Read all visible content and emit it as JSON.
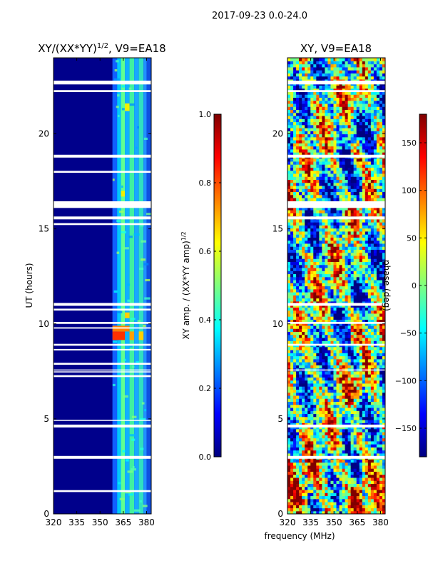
{
  "figure_title": "2017-09-23 0.0-24.0",
  "shared_xlabel": "frequency (MHz)",
  "chart_data": [
    {
      "type": "heatmap",
      "title": "XY/(XX*YY)",
      "title_sup": "1/2",
      "title_suffix": ", V9=EA18",
      "xlim": [
        320,
        383
      ],
      "ylim": [
        0,
        24
      ],
      "xticks": [
        320,
        335,
        350,
        365,
        380
      ],
      "xtick_labels": [
        "320",
        "335",
        "350",
        "365",
        "380"
      ],
      "yticks": [
        0,
        5,
        10,
        15,
        20
      ],
      "ytick_labels": [
        "0",
        "5",
        "10",
        "15",
        "20"
      ],
      "ylabel": "UT (hours)",
      "xlabel": "",
      "band_edges_mhz": [
        358,
        361,
        363.5,
        366,
        369,
        372,
        375,
        378,
        380,
        383
      ],
      "band_colors": [
        "#1060ff",
        "#00c8ff",
        "#60ff90",
        "#10b0ff",
        "#40f0a0",
        "#18a8ff",
        "#30e0c0",
        "#2090ff",
        "#1050e0"
      ],
      "bright_spots": [
        {
          "t0": 9.15,
          "t1": 9.6,
          "f0": 358,
          "f1": 366,
          "color": "#ff3000"
        },
        {
          "t0": 9.15,
          "t1": 9.6,
          "f0": 369,
          "f1": 372,
          "color": "#ffa000"
        },
        {
          "t0": 9.15,
          "t1": 9.6,
          "f0": 375,
          "f1": 378,
          "color": "#ffd000"
        },
        {
          "t0": 9.6,
          "t1": 9.9,
          "f0": 358,
          "f1": 369,
          "color": "#ff8000"
        },
        {
          "t0": 10.3,
          "t1": 10.6,
          "f0": 366,
          "f1": 369,
          "color": "#ffd000"
        },
        {
          "t0": 16.7,
          "t1": 17.0,
          "f0": 363.5,
          "f1": 366,
          "color": "#f0f000"
        },
        {
          "t0": 21.2,
          "t1": 21.6,
          "f0": 366,
          "f1": 369,
          "color": "#f0f000"
        }
      ],
      "flag_gaps_hours": [
        [
          22.6,
          22.8
        ],
        [
          22.2,
          22.3
        ],
        [
          18.75,
          18.9
        ],
        [
          17.95,
          18.05
        ],
        [
          16.1,
          16.45
        ],
        [
          15.5,
          15.65
        ],
        [
          15.2,
          15.3
        ],
        [
          10.95,
          11.1
        ],
        [
          10.7,
          10.8
        ],
        [
          10.0,
          10.1
        ],
        [
          9.75,
          9.82
        ],
        [
          8.85,
          8.95
        ],
        [
          8.6,
          8.68
        ],
        [
          7.85,
          7.95
        ],
        [
          7.55,
          7.6
        ],
        [
          7.45,
          7.5
        ],
        [
          7.2,
          7.3
        ],
        [
          4.9,
          4.95
        ],
        [
          4.55,
          4.7
        ],
        [
          2.9,
          3.05
        ],
        [
          1.15,
          1.25
        ]
      ],
      "colorbar": {
        "label": "XY amp. / (XX*YY amp)",
        "label_sup": "1/2",
        "range": [
          0.0,
          1.0
        ],
        "ticks": [
          0.0,
          0.2,
          0.4,
          0.6,
          0.8,
          1.0
        ],
        "tick_labels": [
          "0.0",
          "0.2",
          "0.4",
          "0.6",
          "0.8",
          "1.0"
        ]
      }
    },
    {
      "type": "heatmap",
      "title": "XY, V9=EA18",
      "xlim": [
        320,
        383
      ],
      "ylim": [
        0,
        24
      ],
      "xticks": [
        320,
        335,
        350,
        365,
        380
      ],
      "xtick_labels": [
        "320",
        "335",
        "350",
        "365",
        "380"
      ],
      "yticks": [
        0,
        5,
        10,
        15,
        20
      ],
      "ytick_labels": [
        "0",
        "5",
        "10",
        "15",
        "20"
      ],
      "ylabel": "",
      "xlabel": "frequency (MHz)",
      "flag_gaps_hours": [
        [
          22.6,
          22.8
        ],
        [
          22.2,
          22.3
        ],
        [
          18.75,
          18.9
        ],
        [
          16.1,
          16.45
        ],
        [
          15.5,
          15.65
        ],
        [
          10.95,
          11.1
        ],
        [
          10.0,
          10.1
        ],
        [
          8.85,
          8.95
        ],
        [
          7.55,
          7.6
        ],
        [
          4.55,
          4.7
        ],
        [
          2.9,
          3.05
        ]
      ],
      "colorbar": {
        "label": "phase (deg)",
        "range": [
          -180,
          180
        ],
        "ticks": [
          -150,
          -100,
          -50,
          0,
          50,
          100,
          150
        ],
        "tick_labels": [
          "−150",
          "−100",
          "−50",
          "0",
          "50",
          "100",
          "150"
        ]
      }
    }
  ]
}
